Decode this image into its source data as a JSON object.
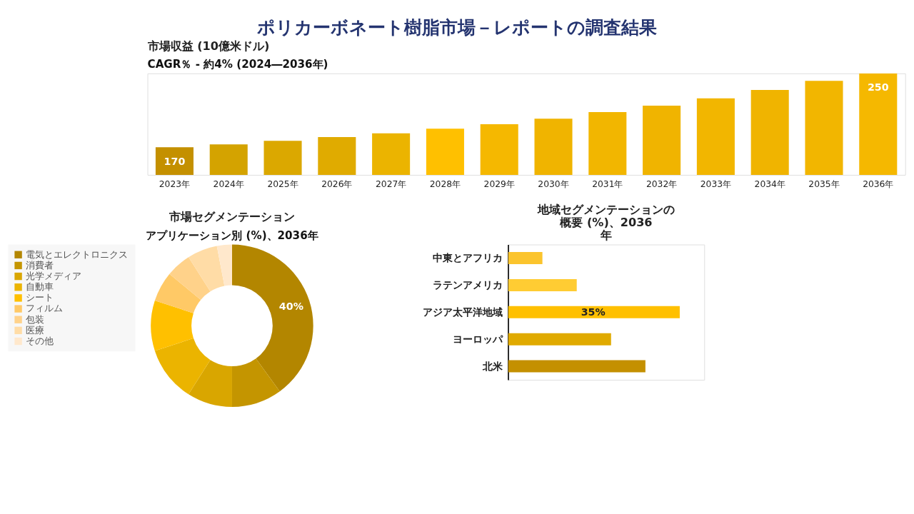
{
  "chart_data": [
    {
      "type": "bar",
      "title": "ポリカーボネート樹脂市場－レポートの調査結果",
      "subtitle": "市場収益 (10億米ドル)",
      "annotations": [
        "CAGR％ - 約4% (2024―2036年)"
      ],
      "categories": [
        "2023年",
        "2024年",
        "2025年",
        "2026年",
        "2027年",
        "2028年",
        "2029年",
        "2030年",
        "2031年",
        "2032年",
        "2033年",
        "2034年",
        "2035年",
        "2036年"
      ],
      "values": [
        170,
        173,
        177,
        181,
        185,
        190,
        195,
        201,
        208,
        215,
        223,
        232,
        242,
        250
      ],
      "value_labels": [
        "170",
        null,
        null,
        null,
        null,
        null,
        null,
        null,
        null,
        null,
        null,
        null,
        null,
        "250"
      ],
      "colors": [
        "#c49000",
        "#d4a300",
        "#dba800",
        "#e0ab00",
        "#ebb400",
        "#ffc000",
        "#f5b800",
        "#f0b400",
        "#f2b600",
        "#f0b400",
        "#f2b600",
        "#f0b400",
        "#f2b600",
        "#f5b800"
      ],
      "ylim": [
        140,
        250
      ],
      "tick_labels": "x"
    },
    {
      "type": "donut",
      "title": "市場セグメンテーション",
      "subtitle": "アプリケーション別 (%)、2036年",
      "categories": [
        "電気とエレクトロニクス",
        "消費者",
        "光学メディア",
        "自動車",
        "シート",
        "フィルム",
        "包装",
        "医療",
        "その他"
      ],
      "values": [
        40,
        10,
        9,
        11,
        10,
        6,
        5,
        6,
        3
      ],
      "value_labels": [
        "40%",
        null,
        null,
        null,
        null,
        null,
        null,
        null,
        null
      ],
      "colors": [
        "#b38600",
        "#c49500",
        "#d9a600",
        "#ebb400",
        "#ffc000",
        "#ffc966",
        "#ffd28a",
        "#ffdca6",
        "#ffe8cc"
      ],
      "legend": "left"
    },
    {
      "type": "bar",
      "orientation": "horizontal",
      "title": "地域セグメンテーションの概要 (%)、2036 年",
      "categories": [
        "中東とアフリカ",
        "ラテンアメリカ",
        "アジア太平洋地域",
        "ヨーロッパ",
        "北米"
      ],
      "values": [
        7,
        14,
        35,
        21,
        28
      ],
      "value_labels": [
        null,
        null,
        "35%",
        null,
        null
      ],
      "colors": [
        "#fbc42d",
        "#ffcc33",
        "#ffc000",
        "#e0aa00",
        "#c49000"
      ],
      "xlim": [
        0,
        40
      ],
      "tick_labels": "y"
    }
  ]
}
